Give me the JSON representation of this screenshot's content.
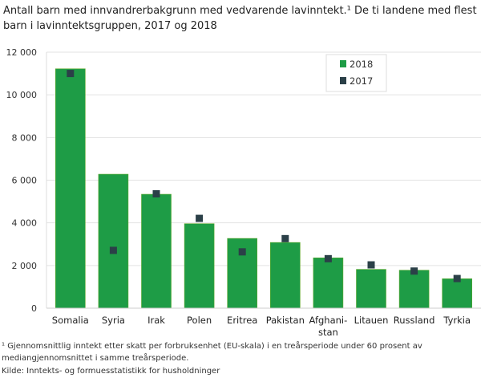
{
  "chart_data": {
    "type": "bar",
    "title": "Antall barn med innvandrerbakgrunn med vedvarende lavinntekt.¹ De ti landene med flest barn i lavinntektsgruppen, 2017 og 2018",
    "categories": [
      "Somalia",
      "Syria",
      "Irak",
      "Polen",
      "Eritrea",
      "Pakistan",
      "Afghani-\nstan",
      "Litauen",
      "Russland",
      "Tyrkia"
    ],
    "series": [
      {
        "name": "2018",
        "type": "bar",
        "color": "#1e9c46",
        "values": [
          11220,
          6280,
          5340,
          3960,
          3270,
          3080,
          2360,
          1820,
          1780,
          1380
        ]
      },
      {
        "name": "2017",
        "type": "marker",
        "color": "#2b4048",
        "values": [
          11000,
          2710,
          5360,
          4210,
          2640,
          3260,
          2320,
          2030,
          1740,
          1390
        ]
      }
    ],
    "yticks": [
      "0",
      "2 000",
      "4 000",
      "6 000",
      "8 000",
      "10 000",
      "12 000"
    ],
    "ylim": [
      0,
      12000
    ],
    "grid": true,
    "legend": "top-right"
  },
  "footnotes": {
    "note1": "¹ Gjennomsnittlig inntekt etter skatt per forbruksenhet (EU-skala) i en treårsperiode under 60 prosent av",
    "note2": "mediangjennomsnittet i samme treårsperiode.",
    "source": "Kilde: Inntekts- og formuesstatistikk for husholdninger"
  }
}
